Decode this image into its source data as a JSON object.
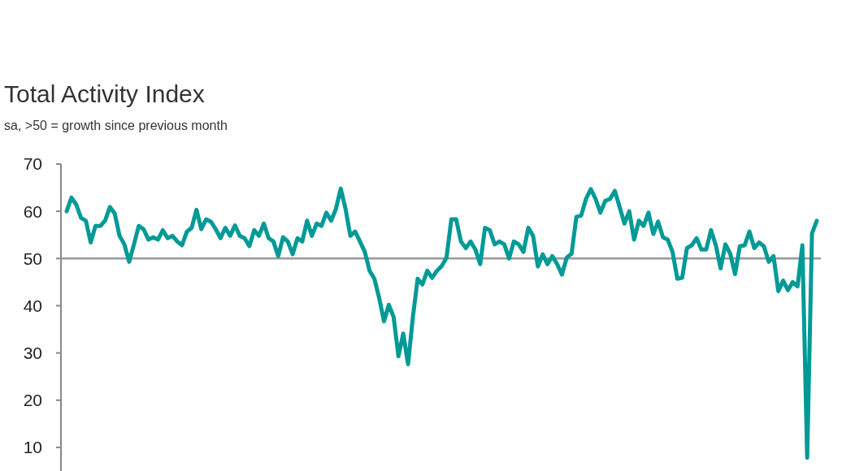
{
  "chart_data": {
    "type": "line",
    "title": "Total Activity Index",
    "subtitle": "sa, >50 = growth since previous month",
    "categories": [
      null,
      null,
      null,
      null,
      null,
      null,
      null,
      null,
      null,
      null,
      null,
      null,
      null,
      null,
      null,
      null,
      null,
      null,
      null,
      null,
      null,
      null,
      null,
      null,
      null,
      null,
      null,
      null,
      null,
      null,
      null,
      null,
      null,
      null,
      null,
      null,
      null,
      null,
      null,
      null,
      null,
      null,
      null,
      null,
      null,
      null,
      null,
      null,
      null,
      null,
      null,
      null,
      null,
      null,
      null,
      null,
      null,
      null,
      null,
      null,
      null,
      null,
      null,
      null,
      null,
      null,
      null,
      null,
      null,
      null,
      null,
      null,
      null,
      null,
      null,
      null,
      null,
      null,
      null,
      null,
      null,
      null,
      null,
      null,
      null,
      null,
      null,
      null,
      null,
      null,
      null,
      null,
      null,
      null,
      null,
      null,
      null,
      null,
      null,
      null,
      null,
      null,
      null,
      null,
      null,
      null,
      null,
      null,
      null,
      null,
      null,
      null,
      null,
      null,
      null,
      null,
      null,
      null,
      null,
      null,
      null,
      null,
      null,
      null,
      null,
      null,
      null,
      null,
      null,
      null,
      null,
      null,
      null,
      null,
      null,
      null,
      null,
      null,
      null,
      null,
      null,
      null,
      null,
      null,
      null,
      null,
      null,
      null,
      null,
      null,
      null,
      null,
      null,
      null,
      null,
      null,
      null
    ],
    "series": [
      {
        "color": "#009a96",
        "values": [
          60,
          62.9,
          61.4,
          58.6,
          58,
          53.4,
          56.9,
          56.9,
          58,
          60.9,
          59.5,
          54.8,
          53,
          49.3,
          53,
          56.9,
          56.2,
          54,
          54.5,
          54,
          56,
          54.3,
          54.8,
          53.6,
          52.8,
          55.7,
          56.5,
          60.3,
          56.2,
          58.3,
          57.8,
          56.2,
          54.3,
          56.5,
          54.8,
          57,
          54.8,
          54.3,
          52.6,
          56,
          54.8,
          57.4,
          54.3,
          53.6,
          50.5,
          54.5,
          53.6,
          50.9,
          54.3,
          53.6,
          58,
          54.8,
          57.4,
          56.9,
          59.7,
          58,
          60.5,
          64.8,
          60.5,
          54.8,
          55.7,
          53.6,
          51.4,
          47.4,
          45.7,
          41.6,
          36.7,
          40.2,
          37.6,
          29.3,
          34.1,
          27.6,
          37.6,
          45.7,
          44.5,
          47.4,
          45.9,
          47.4,
          48.4,
          50.2,
          58.3,
          58.3,
          53.6,
          52.2,
          53.6,
          51.9,
          48.8,
          56.5,
          56,
          53,
          53.6,
          53,
          50,
          53.6,
          53,
          51.4,
          56.5,
          54.8,
          48.3,
          50.9,
          48.8,
          50.5,
          48.8,
          46.6,
          50.2,
          51,
          58.8,
          59.1,
          62.6,
          64.7,
          62.6,
          59.7,
          62.2,
          62.6,
          64.3,
          60.9,
          57.4,
          60,
          54,
          58,
          56.9,
          59.7,
          55.2,
          57.8,
          54.5,
          54,
          51.4,
          45.7,
          45.9,
          52.2,
          52.8,
          54.3,
          51.9,
          51.9,
          56,
          52.8,
          47.9,
          53,
          51,
          46.7,
          52.6,
          52.8,
          55.7,
          52.2,
          53.4,
          52.6,
          49.3,
          50.5,
          43.1,
          45.3,
          43.3,
          45,
          44.1,
          52.8,
          7.8,
          55.3,
          58
        ]
      }
    ],
    "ylim": [
      5,
      70
    ],
    "yticks": [
      10,
      20,
      30,
      40,
      50,
      60,
      70
    ],
    "ref_lines": [
      {
        "axis": "y",
        "value": 50,
        "color": "#999999"
      }
    ],
    "grid": false
  }
}
